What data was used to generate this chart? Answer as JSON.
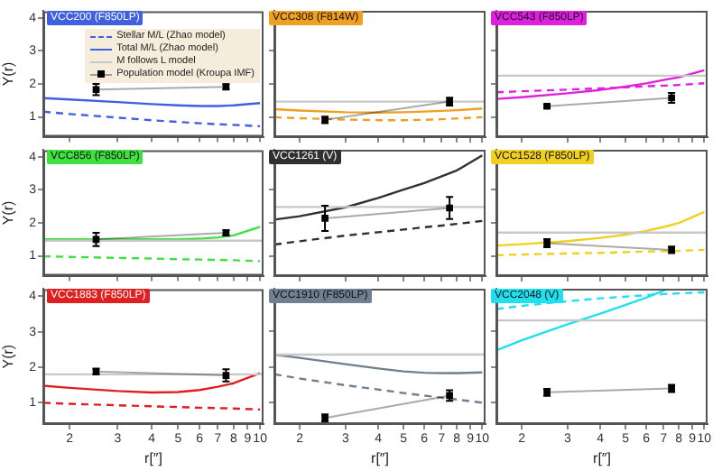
{
  "chart_data": [
    {
      "type": "line",
      "title": "VCC200 (F850LP)",
      "ylabel": "Υ(r)",
      "log": "x",
      "xlim": [
        1.6,
        10.3
      ],
      "xticks": [
        2,
        3,
        4,
        5,
        6,
        7,
        8,
        9,
        10
      ],
      "ylim": [
        0.4,
        4.2
      ],
      "yticks": [
        1,
        2,
        3,
        4
      ],
      "tick_labels": "y",
      "legend": "top right",
      "series": [
        {
          "name": "Stellar M/L (Zhao model)",
          "color": "#4060e0",
          "line_style": "dashed",
          "x": [
            1.6,
            2,
            3,
            4,
            5,
            6,
            7,
            8,
            10
          ],
          "values": [
            1.16,
            1.09,
            0.98,
            0.9,
            0.85,
            0.81,
            0.78,
            0.76,
            0.72
          ]
        },
        {
          "name": "Total M/L (Zhao model)",
          "color": "#4060e0",
          "line_style": "solid",
          "x": [
            1.6,
            2,
            3,
            4,
            5,
            6,
            7,
            8,
            10
          ],
          "values": [
            1.57,
            1.53,
            1.45,
            1.39,
            1.35,
            1.33,
            1.33,
            1.35,
            1.42
          ]
        },
        {
          "name": "M follows L model",
          "color": "#c8c8c8",
          "line_style": "solid"
        },
        {
          "name": "Population model (Kroupa IMF)",
          "color": "#000000",
          "line_style": "solid",
          "marker": "square",
          "x": [
            2.5,
            7.5
          ],
          "values": [
            1.83,
            1.91
          ],
          "errors": [
            0.17,
            0.08
          ]
        }
      ]
    },
    {
      "type": "line",
      "title": "VCC308 (F814W)",
      "log": "x",
      "xlim": [
        1.6,
        10.3
      ],
      "xticks": [
        2,
        3,
        4,
        5,
        6,
        7,
        8,
        9,
        10
      ],
      "ylim": [
        0.4,
        4.2
      ],
      "yticks": [
        1,
        2,
        3,
        4
      ],
      "tick_labels": false,
      "series": [
        {
          "color": "#f0a020",
          "line_style": "dashed",
          "x": [
            1.6,
            2,
            3,
            4,
            5,
            6,
            7,
            8,
            10
          ],
          "values": [
            1.0,
            0.97,
            0.93,
            0.91,
            0.91,
            0.92,
            0.94,
            0.96,
            1.0
          ]
        },
        {
          "color": "#f0a020",
          "line_style": "solid",
          "x": [
            1.6,
            2,
            3,
            4,
            5,
            6,
            7,
            8,
            10
          ],
          "values": [
            1.24,
            1.2,
            1.15,
            1.14,
            1.15,
            1.17,
            1.19,
            1.21,
            1.26
          ]
        },
        {
          "color": "#c8c8c8",
          "line_style": "solid",
          "x": [
            1.6,
            10.3
          ],
          "values": [
            1.47,
            1.47
          ]
        },
        {
          "color": "#000000",
          "line_style": "solid",
          "marker": "square",
          "x": [
            2.5,
            7.5
          ],
          "values": [
            0.92,
            1.47
          ],
          "errors": [
            0.1,
            0.12
          ]
        }
      ]
    },
    {
      "type": "line",
      "title": "VCC543 (F850LP)",
      "log": "x",
      "xlim": [
        1.6,
        10.3
      ],
      "xticks": [
        2,
        3,
        4,
        5,
        6,
        7,
        8,
        9,
        10
      ],
      "ylim": [
        0.4,
        4.2
      ],
      "yticks": [
        1,
        2,
        3,
        4
      ],
      "tick_labels": false,
      "series": [
        {
          "color": "#e020e0",
          "line_style": "dashed",
          "x": [
            1.6,
            2,
            3,
            4,
            5,
            6,
            7,
            8,
            10
          ],
          "values": [
            1.75,
            1.78,
            1.83,
            1.87,
            1.9,
            1.93,
            1.95,
            1.97,
            2.02
          ]
        },
        {
          "color": "#e020e0",
          "line_style": "solid",
          "x": [
            1.6,
            2,
            3,
            4,
            5,
            6,
            7,
            8,
            10
          ],
          "values": [
            1.55,
            1.6,
            1.72,
            1.82,
            1.92,
            2.02,
            2.12,
            2.2,
            2.41
          ]
        },
        {
          "color": "#c8c8c8",
          "line_style": "solid",
          "x": [
            1.6,
            10.3
          ],
          "values": [
            2.25,
            2.25
          ]
        },
        {
          "color": "#000000",
          "line_style": "solid",
          "marker": "square",
          "x": [
            2.5,
            7.5
          ],
          "values": [
            1.33,
            1.58
          ],
          "errors": [
            0.05,
            0.15
          ]
        }
      ]
    },
    {
      "type": "line",
      "title": "VCC856 (F850LP)",
      "ylabel": "Υ(r)",
      "log": "x",
      "xlim": [
        1.6,
        10.3
      ],
      "xticks": [
        2,
        3,
        4,
        5,
        6,
        7,
        8,
        9,
        10
      ],
      "ylim": [
        0.4,
        4.2
      ],
      "yticks": [
        1,
        2,
        3,
        4
      ],
      "tick_labels": "y",
      "series": [
        {
          "color": "#40e040",
          "line_style": "dashed",
          "x": [
            1.6,
            2,
            3,
            4,
            5,
            6,
            7,
            8,
            10
          ],
          "values": [
            0.99,
            0.97,
            0.94,
            0.92,
            0.9,
            0.89,
            0.88,
            0.87,
            0.84
          ]
        },
        {
          "color": "#40e040",
          "line_style": "solid",
          "x": [
            1.6,
            2,
            3,
            4,
            5,
            6,
            7,
            8,
            10
          ],
          "values": [
            1.5,
            1.5,
            1.5,
            1.5,
            1.5,
            1.52,
            1.56,
            1.62,
            1.88
          ]
        },
        {
          "color": "#c8c8c8",
          "line_style": "solid",
          "x": [
            1.6,
            10.3
          ],
          "values": [
            1.46,
            1.46
          ]
        },
        {
          "color": "#000000",
          "line_style": "solid",
          "marker": "square",
          "x": [
            2.5,
            7.5
          ],
          "values": [
            1.5,
            1.7
          ],
          "errors": [
            0.2,
            0.08
          ]
        }
      ]
    },
    {
      "type": "line",
      "title": "VCC1261 (V)",
      "log": "x",
      "xlim": [
        1.6,
        10.3
      ],
      "xticks": [
        2,
        3,
        4,
        5,
        6,
        7,
        8,
        9,
        10
      ],
      "ylim": [
        0.4,
        4.2
      ],
      "yticks": [
        1,
        2,
        3,
        4
      ],
      "tick_labels": false,
      "series": [
        {
          "color": "#303030",
          "line_style": "dashed",
          "x": [
            1.6,
            2,
            3,
            4,
            5,
            6,
            7,
            8,
            10
          ],
          "values": [
            1.35,
            1.45,
            1.62,
            1.72,
            1.8,
            1.87,
            1.92,
            1.97,
            2.06
          ]
        },
        {
          "color": "#303030",
          "line_style": "solid",
          "x": [
            1.6,
            2,
            3,
            4,
            5,
            6,
            7,
            8,
            10
          ],
          "values": [
            2.1,
            2.2,
            2.47,
            2.75,
            3.0,
            3.2,
            3.4,
            3.58,
            4.03
          ]
        },
        {
          "color": "#c8c8c8",
          "line_style": "solid",
          "x": [
            1.6,
            10.3
          ],
          "values": [
            2.48,
            2.48
          ]
        },
        {
          "color": "#000000",
          "line_style": "solid",
          "marker": "square",
          "x": [
            2.5,
            7.5
          ],
          "values": [
            2.14,
            2.45
          ],
          "errors": [
            0.38,
            0.33
          ]
        }
      ]
    },
    {
      "type": "line",
      "title": "VCC1528 (F850LP)",
      "log": "x",
      "xlim": [
        1.6,
        10.3
      ],
      "xticks": [
        2,
        3,
        4,
        5,
        6,
        7,
        8,
        9,
        10
      ],
      "ylim": [
        0.4,
        4.2
      ],
      "yticks": [
        1,
        2,
        3,
        4
      ],
      "tick_labels": false,
      "series": [
        {
          "color": "#f0d020",
          "line_style": "dashed",
          "x": [
            1.6,
            2,
            3,
            4,
            5,
            6,
            7,
            8,
            10
          ],
          "values": [
            1.03,
            1.05,
            1.08,
            1.1,
            1.12,
            1.14,
            1.15,
            1.16,
            1.19
          ]
        },
        {
          "color": "#f0d020",
          "line_style": "solid",
          "x": [
            1.6,
            2,
            3,
            4,
            5,
            6,
            7,
            8,
            10
          ],
          "values": [
            1.32,
            1.36,
            1.45,
            1.55,
            1.65,
            1.76,
            1.88,
            2.0,
            2.33
          ]
        },
        {
          "color": "#c8c8c8",
          "line_style": "solid",
          "x": [
            1.6,
            10.3
          ],
          "values": [
            1.71,
            1.71
          ]
        },
        {
          "color": "#000000",
          "line_style": "solid",
          "marker": "square",
          "x": [
            2.5,
            7.5
          ],
          "values": [
            1.39,
            1.19
          ],
          "errors": [
            0.12,
            0.1
          ]
        }
      ]
    },
    {
      "type": "line",
      "title": "VCC1883 (F850LP)",
      "xlabel": "r[″]",
      "ylabel": "Υ(r)",
      "log": "x",
      "xlim": [
        1.6,
        10.3
      ],
      "xticks": [
        2,
        3,
        4,
        5,
        6,
        7,
        8,
        9,
        10
      ],
      "ylim": [
        0.4,
        4.2
      ],
      "yticks": [
        1,
        2,
        3,
        4
      ],
      "series": [
        {
          "color": "#e02020",
          "line_style": "dashed",
          "x": [
            1.6,
            2,
            3,
            4,
            5,
            6,
            7,
            8,
            10
          ],
          "values": [
            1.0,
            0.97,
            0.93,
            0.9,
            0.88,
            0.86,
            0.85,
            0.84,
            0.81
          ]
        },
        {
          "color": "#e02020",
          "line_style": "solid",
          "x": [
            1.6,
            2,
            3,
            4,
            5,
            6,
            7,
            8,
            10
          ],
          "values": [
            1.48,
            1.42,
            1.33,
            1.29,
            1.3,
            1.36,
            1.45,
            1.55,
            1.83
          ]
        },
        {
          "color": "#c8c8c8",
          "line_style": "solid",
          "x": [
            1.6,
            10.3
          ],
          "values": [
            1.8,
            1.8
          ]
        },
        {
          "color": "#000000",
          "line_style": "solid",
          "marker": "square",
          "x": [
            2.5,
            7.5
          ],
          "values": [
            1.88,
            1.77
          ],
          "errors": [
            0.08,
            0.17
          ]
        }
      ]
    },
    {
      "type": "line",
      "title": "VCC1910 (F850LP)",
      "xlabel": "r[″]",
      "log": "x",
      "xlim": [
        1.6,
        10.3
      ],
      "xticks": [
        2,
        3,
        4,
        5,
        6,
        7,
        8,
        9,
        10
      ],
      "ylim": [
        0.4,
        4.2
      ],
      "yticks": [
        1,
        2,
        3,
        4
      ],
      "tick_labels": "x",
      "series": [
        {
          "color": "#708090",
          "line_style": "dashed",
          "x": [
            1.6,
            2,
            3,
            4,
            5,
            6,
            7,
            8,
            10
          ],
          "values": [
            1.8,
            1.68,
            1.49,
            1.37,
            1.27,
            1.2,
            1.14,
            1.09,
            1.0
          ]
        },
        {
          "color": "#708090",
          "line_style": "solid",
          "x": [
            1.6,
            2,
            3,
            4,
            5,
            6,
            7,
            8,
            10
          ],
          "values": [
            2.35,
            2.26,
            2.08,
            1.96,
            1.88,
            1.84,
            1.83,
            1.83,
            1.85
          ]
        },
        {
          "color": "#c8c8c8",
          "line_style": "solid",
          "x": [
            1.6,
            10.3
          ],
          "values": [
            2.35,
            2.35
          ]
        },
        {
          "color": "#000000",
          "line_style": "solid",
          "marker": "square",
          "x": [
            2.5,
            7.5
          ],
          "values": [
            0.57,
            1.2
          ],
          "errors": [
            0.1,
            0.15
          ]
        }
      ]
    },
    {
      "type": "line",
      "title": "VCC2048 (V)",
      "xlabel": "r[″]",
      "log": "x",
      "xlim": [
        1.6,
        10.3
      ],
      "xticks": [
        2,
        3,
        4,
        5,
        6,
        7,
        8,
        9,
        10
      ],
      "ylim": [
        0.4,
        4.2
      ],
      "yticks": [
        1,
        2,
        3,
        4
      ],
      "tick_labels": "x",
      "series": [
        {
          "color": "#20e0f0",
          "line_style": "dashed",
          "x": [
            1.6,
            2,
            3,
            4,
            5,
            6,
            7,
            8,
            10
          ],
          "values": [
            3.63,
            3.72,
            3.85,
            3.93,
            3.98,
            4.02,
            4.05,
            4.07,
            4.1
          ]
        },
        {
          "color": "#20e0f0",
          "line_style": "solid",
          "x": [
            1.6,
            2,
            3,
            4,
            5,
            6,
            7.3
          ],
          "values": [
            2.47,
            2.75,
            3.2,
            3.5,
            3.75,
            3.95,
            4.2
          ]
        },
        {
          "color": "#c8c8c8",
          "line_style": "solid",
          "x": [
            1.6,
            10.3
          ],
          "values": [
            3.31,
            3.31
          ]
        },
        {
          "color": "#000000",
          "line_style": "solid",
          "marker": "square",
          "x": [
            2.5,
            7.5
          ],
          "values": [
            1.29,
            1.4
          ],
          "errors": [
            0.1,
            0.1
          ]
        }
      ]
    }
  ]
}
